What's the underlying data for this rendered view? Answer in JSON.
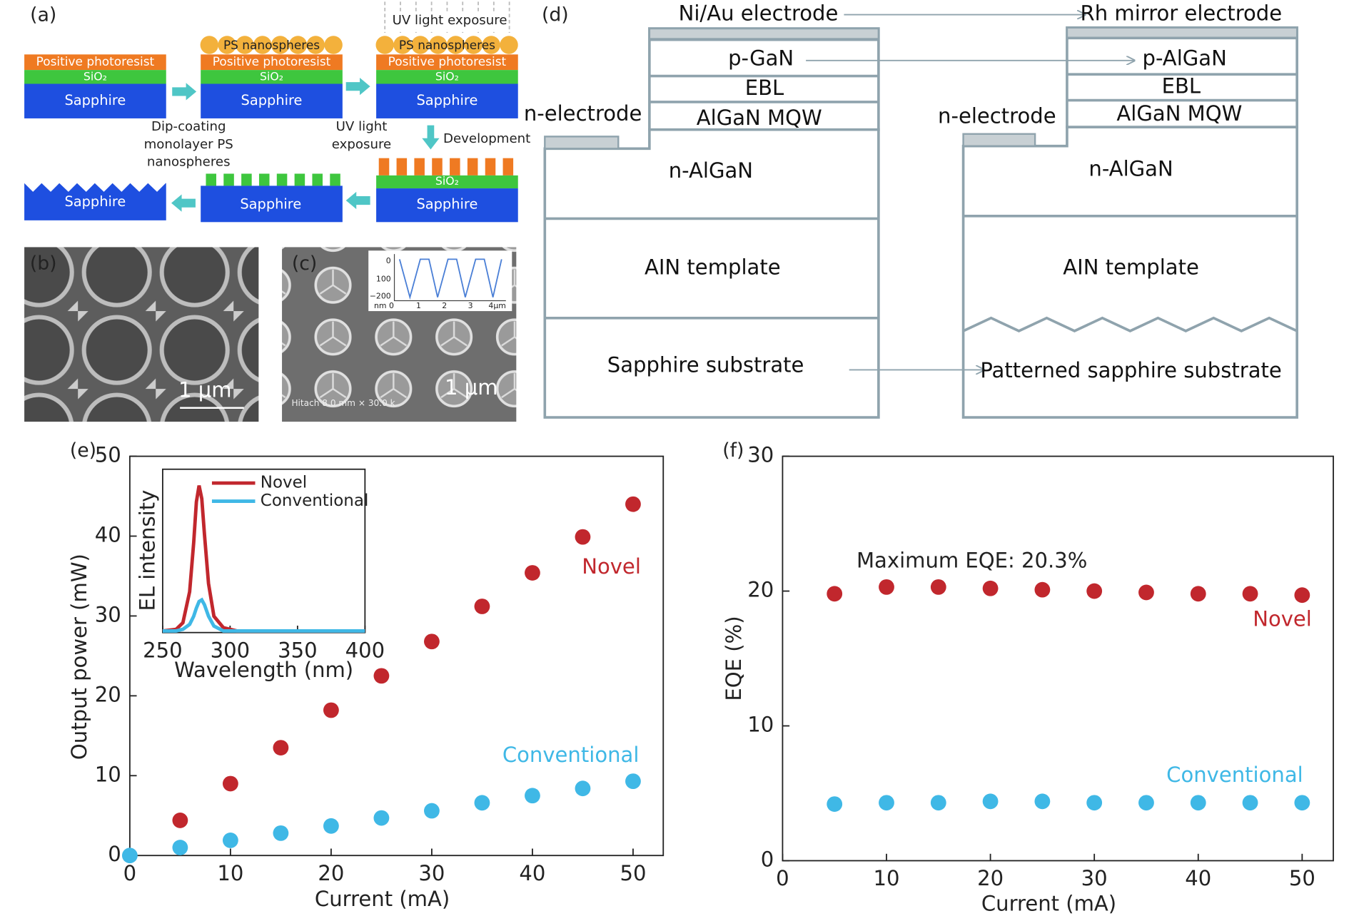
{
  "process": {
    "label": "(a)",
    "photoresist": "Positive photoresist",
    "sio2": "SiO₂",
    "sapphire": "Sapphire",
    "spheres": "PS nanospheres",
    "uv": "UV light exposure",
    "step1": [
      "Dip-coating",
      "monolayer PS",
      "nanospheres"
    ],
    "step2": [
      "UV light",
      "exposure"
    ],
    "step3": "Development"
  },
  "sem": {
    "b": {
      "label": "(b)",
      "scale": "1 μm"
    },
    "c": {
      "label": "(c)",
      "scale": "1 μm",
      "info": "Hitach 8.0 mm × 30.0 k",
      "profile_ticks": [
        "0",
        "100",
        "−200",
        "nm 0",
        "1",
        "2",
        "3",
        "4μm"
      ]
    }
  },
  "structure": {
    "label": "(d)",
    "left": {
      "electrode": "Ni/Au electrode",
      "p": "p-GaN",
      "ebl": "EBL",
      "mqw": "AlGaN MQW",
      "n_electrode": "n-electrode",
      "n": "n-AlGaN",
      "template": "AIN template",
      "substrate": "Sapphire substrate"
    },
    "right": {
      "electrode": "Rh mirror electrode",
      "p": "p-AlGaN",
      "ebl": "EBL",
      "mqw": "AlGaN MQW",
      "n_electrode": "n-electrode",
      "n": "n-AlGaN",
      "template": "AIN template",
      "substrate": "Patterned sapphire substrate"
    }
  },
  "chart_data": [
    {
      "type": "scatter",
      "panel_label": "(e)",
      "x_label": "Current (mA)",
      "y_label": "Output power (mW)",
      "xlim": [
        0,
        53
      ],
      "xticks": [
        0,
        10,
        20,
        30,
        40,
        50
      ],
      "ylim": [
        0,
        50
      ],
      "yticks": [
        0,
        10,
        20,
        30,
        40,
        50
      ],
      "series": [
        {
          "name": "Novel",
          "color": "#c1272d",
          "x": [
            5,
            10,
            15,
            20,
            25,
            30,
            35,
            40,
            45,
            50
          ],
          "values": [
            4.4,
            9.0,
            13.5,
            18.2,
            22.5,
            26.8,
            31.2,
            35.4,
            39.9,
            44.0
          ]
        },
        {
          "name": "Conventional",
          "color": "#3fb8e6",
          "x": [
            0,
            5,
            10,
            15,
            20,
            25,
            30,
            35,
            40,
            45,
            50
          ],
          "values": [
            0,
            1.0,
            1.9,
            2.8,
            3.7,
            4.7,
            5.6,
            6.6,
            7.5,
            8.4,
            9.3
          ]
        }
      ]
    },
    {
      "type": "line",
      "x_label": "Wavelength (nm)",
      "y_label": "EL intensity",
      "legend": "upper right",
      "xlim": [
        250,
        400
      ],
      "xticks": [
        250,
        300,
        350,
        400
      ],
      "ylim": [
        0,
        1
      ],
      "x": [
        250,
        260,
        265,
        270,
        273,
        275,
        277,
        279,
        281,
        284,
        288,
        295,
        305,
        330,
        400
      ],
      "series": [
        {
          "name": "Novel",
          "color": "#c1272d",
          "values": [
            0.01,
            0.02,
            0.06,
            0.25,
            0.55,
            0.8,
            0.9,
            0.82,
            0.6,
            0.3,
            0.1,
            0.03,
            0.01,
            0.01,
            0.01
          ]
        },
        {
          "name": "Conventional",
          "color": "#3fb8e6",
          "values": [
            0.01,
            0.01,
            0.02,
            0.05,
            0.1,
            0.15,
            0.19,
            0.2,
            0.17,
            0.1,
            0.04,
            0.01,
            0.01,
            0.01,
            0.01
          ]
        }
      ]
    },
    {
      "type": "scatter",
      "panel_label": "(f)",
      "x_label": "Current (mA)",
      "y_label": "EQE (%)",
      "annotation": "Maximum EQE: 20.3%",
      "xlim": [
        0,
        53
      ],
      "xticks": [
        0,
        10,
        20,
        30,
        40,
        50
      ],
      "ylim": [
        0,
        30
      ],
      "yticks": [
        0,
        10,
        20,
        30
      ],
      "series": [
        {
          "name": "Novel",
          "color": "#c1272d",
          "x": [
            5,
            10,
            15,
            20,
            25,
            30,
            35,
            40,
            45,
            50
          ],
          "values": [
            19.8,
            20.3,
            20.3,
            20.2,
            20.1,
            20.0,
            19.9,
            19.8,
            19.8,
            19.7
          ]
        },
        {
          "name": "Conventional",
          "color": "#3fb8e6",
          "x": [
            5,
            10,
            15,
            20,
            25,
            30,
            35,
            40,
            45,
            50
          ],
          "values": [
            4.2,
            4.3,
            4.3,
            4.4,
            4.4,
            4.3,
            4.3,
            4.3,
            4.3,
            4.3
          ]
        }
      ]
    }
  ]
}
